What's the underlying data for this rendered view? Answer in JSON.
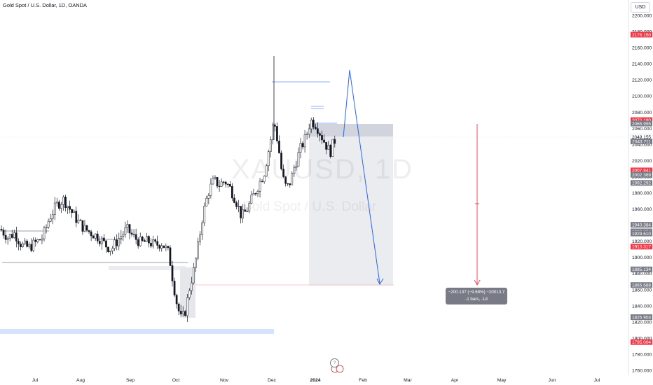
{
  "header": {
    "title": "Gold Spot / U.S. Dollar, 1D, OANDA",
    "currency": "USD"
  },
  "watermark": {
    "symbol": "XAUUSD, 1D",
    "description": "Gold Spot / U.S. Dollar"
  },
  "measure_label": {
    "line1": "−200.137 (−9.69%) −20013.7",
    "line2": "-1 bars, -1d"
  },
  "chart_data": {
    "type": "candlestick",
    "title": "Gold Spot / U.S. Dollar, 1D, OANDA",
    "currency": "USD",
    "ylim": [
      1752,
      2210
    ],
    "y_ticks": [
      1760,
      1780,
      1800,
      1820,
      1840,
      1860,
      1880,
      1900,
      1920,
      1940,
      1960,
      1980,
      2000,
      2020,
      2040,
      2060,
      2080,
      2100,
      2120,
      2140,
      2160,
      2180,
      2200
    ],
    "y_tick_labels": [
      "1760.000",
      "1780.000",
      "1800.000",
      "1820.000",
      "1840.000",
      "1860.000",
      "1880.000",
      "1900.000",
      "1920.000",
      "1940.000",
      "1960.000",
      "1980.000",
      "2000.000",
      "2020.000",
      "2040.000",
      "2060.000",
      "2080.000",
      "2100.000",
      "2120.000",
      "2140.000",
      "2160.000",
      "2180.000",
      "2200.000"
    ],
    "x_labels": [
      "Jul",
      "Aug",
      "Sep",
      "Oct",
      "Nov",
      "Dec",
      "2024",
      "Feb",
      "Mar",
      "Apr",
      "May",
      "Jun",
      "Jul"
    ],
    "price_labels": [
      {
        "value": 2176.15,
        "text": "2176.150",
        "color": "#f23645"
      },
      {
        "value": 2070.19,
        "text": "2070.190",
        "color": "#f23645"
      },
      {
        "value": 2065.955,
        "text": "2065.955",
        "color": "#787b86"
      },
      {
        "value": 2049.155,
        "text": "2049.155",
        "color": "#ffffff"
      },
      {
        "value": 2043.711,
        "text": "2043.711",
        "color": "#787b86"
      },
      {
        "value": 2007.841,
        "text": "2007.841",
        "color": "#f23645"
      },
      {
        "value": 2002.369,
        "text": "2002.369",
        "color": "#787b86"
      },
      {
        "value": 1992.292,
        "text": "1992.292",
        "color": "#787b86"
      },
      {
        "value": 1940.384,
        "text": "1940.384",
        "color": "#787b86"
      },
      {
        "value": 1932.234,
        "text": "1932.234",
        "color": "#787b86"
      },
      {
        "value": 1929.61,
        "text": "1929.610",
        "color": "#787b86"
      },
      {
        "value": 1913.317,
        "text": "1913.317",
        "color": "#f23645"
      },
      {
        "value": 1885.134,
        "text": "1885.134",
        "color": "#787b86"
      },
      {
        "value": 1865.688,
        "text": "1865.688",
        "color": "#787b86"
      },
      {
        "value": 1825.903,
        "text": "1825.903",
        "color": "#787b86"
      },
      {
        "value": 1795.004,
        "text": "1795.004",
        "color": "#f23645"
      }
    ],
    "colors": {
      "up": "#ffffff",
      "down": "#131722",
      "label_red": "#f23645",
      "label_gray": "#787b86",
      "projection": "#2962ff",
      "measure": "#f23645"
    }
  }
}
